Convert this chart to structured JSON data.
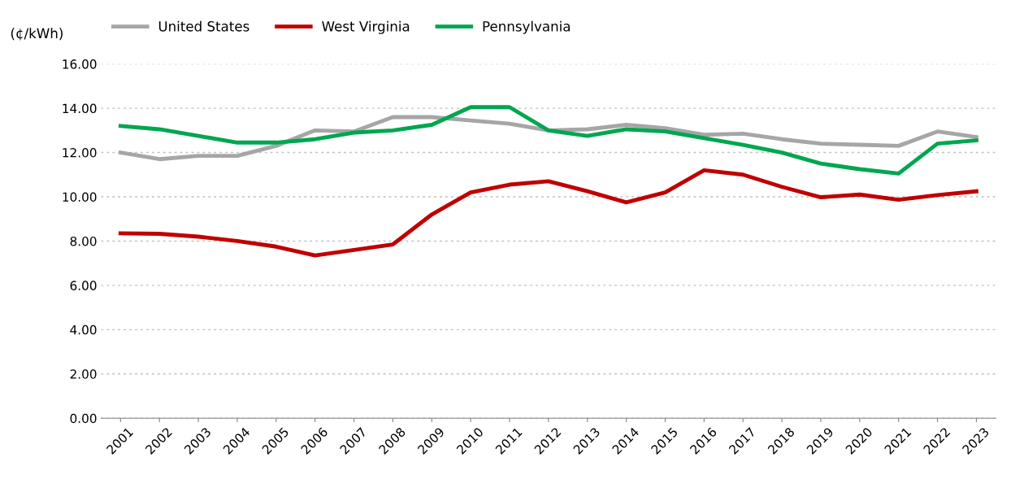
{
  "chart_data": {
    "type": "line",
    "ylabel": "(¢/kWh)",
    "categories": [
      "2001",
      "2002",
      "2003",
      "2004",
      "2005",
      "2006",
      "2007",
      "2008",
      "2009",
      "2010",
      "2011",
      "2012",
      "2013",
      "2014",
      "2015",
      "2016",
      "2017",
      "2018",
      "2019",
      "2020",
      "2021",
      "2022",
      "2023"
    ],
    "series": [
      {
        "name": "United States",
        "color": "#a6a6a6",
        "values": [
          12.0,
          11.7,
          11.85,
          11.85,
          12.3,
          13.0,
          12.95,
          13.6,
          13.6,
          13.45,
          13.3,
          13.0,
          13.05,
          13.25,
          13.1,
          12.8,
          12.85,
          12.6,
          12.4,
          12.35,
          12.3,
          12.95,
          12.7
        ]
      },
      {
        "name": "West Virginia",
        "color": "#c00000",
        "values": [
          8.35,
          8.33,
          8.2,
          8.0,
          7.75,
          7.35,
          7.6,
          7.85,
          9.2,
          10.2,
          10.55,
          10.7,
          10.25,
          9.75,
          10.2,
          11.2,
          11.0,
          10.45,
          9.98,
          10.1,
          9.87,
          10.08,
          10.25
        ]
      },
      {
        "name": "Pennsylvania",
        "color": "#00a650",
        "values": [
          13.2,
          13.05,
          12.75,
          12.45,
          12.45,
          12.6,
          12.9,
          13.0,
          13.25,
          14.05,
          14.05,
          13.0,
          12.75,
          13.05,
          12.95,
          12.65,
          12.35,
          12.0,
          11.5,
          11.25,
          11.05,
          12.4,
          12.55
        ]
      }
    ],
    "ylim": [
      0,
      16
    ],
    "yticks": [
      {
        "value": 0,
        "label": "0.00"
      },
      {
        "value": 2,
        "label": "2.00"
      },
      {
        "value": 4,
        "label": "4.00"
      },
      {
        "value": 6,
        "label": "6.00"
      },
      {
        "value": 8,
        "label": "8.00"
      },
      {
        "value": 10,
        "label": "10.00"
      },
      {
        "value": 12,
        "label": "12.00"
      },
      {
        "value": 14,
        "label": "14.00"
      },
      {
        "value": 16,
        "label": "16.00"
      }
    ],
    "grid": "y",
    "legend": "top left",
    "marker": "none",
    "line_style": "solid"
  }
}
